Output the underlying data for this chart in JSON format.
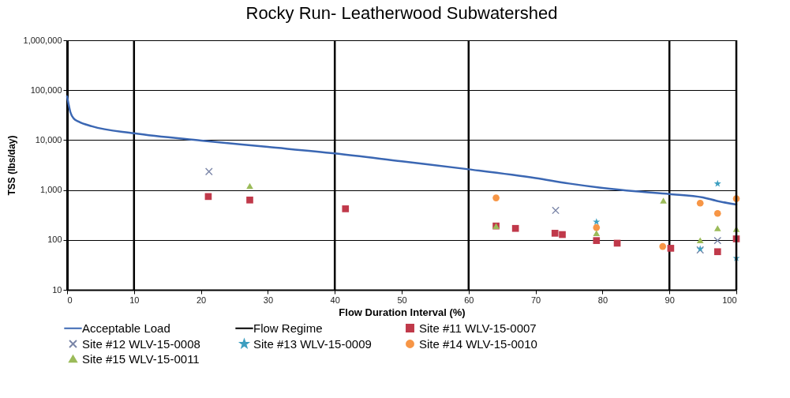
{
  "chart_data": {
    "type": "scatter",
    "title": "Rocky Run- Leatherwood Subwatershed",
    "xlabel": "Flow Duration Interval (%)",
    "ylabel": "TSS (lbs/day)",
    "xlim": [
      0,
      100
    ],
    "xticks": [
      0,
      10,
      20,
      30,
      40,
      50,
      60,
      70,
      80,
      90,
      100
    ],
    "ylim": [
      10,
      1000000
    ],
    "yticks": [
      10,
      100,
      {
        "value": 1000,
        "label": "1,000"
      },
      {
        "value": 10000,
        "label": "10,000"
      },
      {
        "value": 100000,
        "label": "100,000"
      },
      {
        "value": 1000000,
        "label": "1,000,000"
      }
    ],
    "log": "y",
    "grid": "y",
    "legend": "bottom",
    "series": [
      {
        "name": "Acceptable Load",
        "type": "line",
        "color": "#3b67b3",
        "marker": "none",
        "x": [
          0,
          0.5,
          1,
          1.7,
          3.7,
          10,
          20,
          30,
          40,
          50,
          60,
          70,
          75,
          80,
          85,
          90,
          95,
          97,
          100
        ],
        "values": [
          75000,
          36000,
          27000,
          23600,
          18900,
          13700,
          9800,
          7300,
          5400,
          3750,
          2600,
          1730,
          1350,
          1100,
          940,
          830,
          710,
          610,
          510
        ]
      },
      {
        "name": "Site #11 WLV-15-0007",
        "color": "#c0394a",
        "marker": "square",
        "x": [
          21.1,
          27.3,
          41.6,
          64.1,
          67.0,
          72.9,
          74.0,
          79.1,
          82.2,
          90.2,
          97.2,
          100
        ],
        "values": [
          740,
          630,
          420,
          190,
          170,
          136,
          128,
          97,
          86,
          68,
          58,
          105
        ]
      },
      {
        "name": "Site #12 WLV-15-0008",
        "color": "#7b86a8",
        "marker": "cross",
        "x": [
          21.2,
          73.0,
          94.6,
          97.2
        ],
        "values": [
          2340,
          390,
          63,
          97
        ]
      },
      {
        "name": "Site #13 WLV-15-0009",
        "color": "#3d9fc0",
        "marker": "star",
        "x": [
          79.1,
          94.6,
          97.2,
          100
        ],
        "values": [
          230,
          66,
          1340,
          43
        ]
      },
      {
        "name": "Site #14 WLV-15-0010",
        "color": "#f79646",
        "marker": "circle",
        "x": [
          64.1,
          79.1,
          89.0,
          94.6,
          97.2,
          100
        ],
        "values": [
          695,
          177,
          74,
          545,
          339,
          670
        ]
      },
      {
        "name": "Site #15 WLV-15-0011",
        "color": "#9bbb59",
        "marker": "triangle",
        "x": [
          27.3,
          64.1,
          79.1,
          89.1,
          94.6,
          97.2,
          100
        ],
        "values": [
          1200,
          190,
          136,
          614,
          98,
          171,
          166
        ]
      }
    ],
    "ref_lines": [
      {
        "axis": "x",
        "value": 10,
        "label": "Flow Regime",
        "color": "#000000"
      },
      {
        "axis": "x",
        "value": 40,
        "color": "#000000"
      },
      {
        "axis": "x",
        "value": 60,
        "color": "#000000"
      },
      {
        "axis": "x",
        "value": 90,
        "color": "#000000"
      }
    ]
  }
}
